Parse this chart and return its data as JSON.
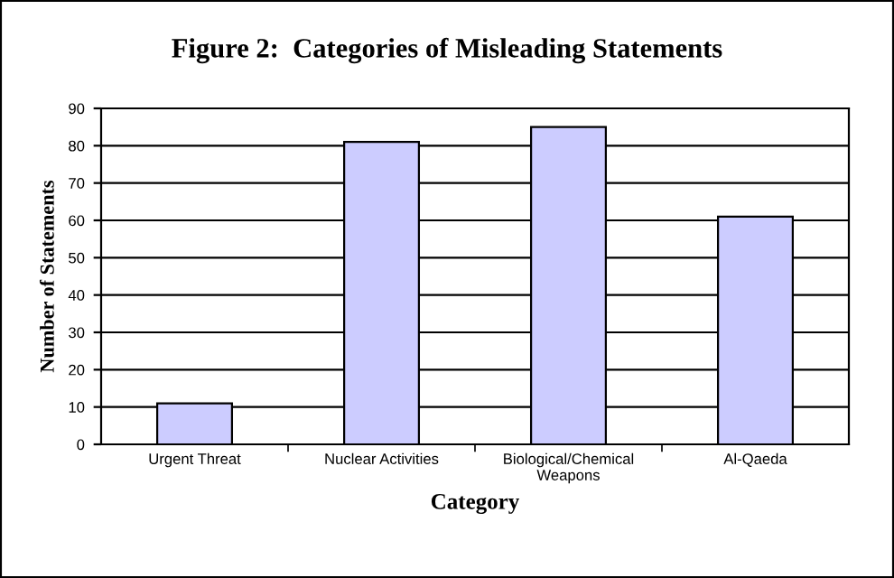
{
  "chart_data": {
    "type": "bar",
    "title": "Figure 2:  Categories of Misleading Statements",
    "xlabel": "Category",
    "ylabel": "Number of Statements",
    "categories": [
      "Urgent Threat",
      "Nuclear Activities",
      "Biological/Chemical\nWeapons",
      "Al-Qaeda"
    ],
    "values": [
      11,
      81,
      85,
      61
    ],
    "color": "#ccccff",
    "ylim": [
      0,
      90
    ],
    "yticks": [
      0,
      10,
      20,
      30,
      40,
      50,
      60,
      70,
      80,
      90
    ],
    "grid": "y"
  }
}
